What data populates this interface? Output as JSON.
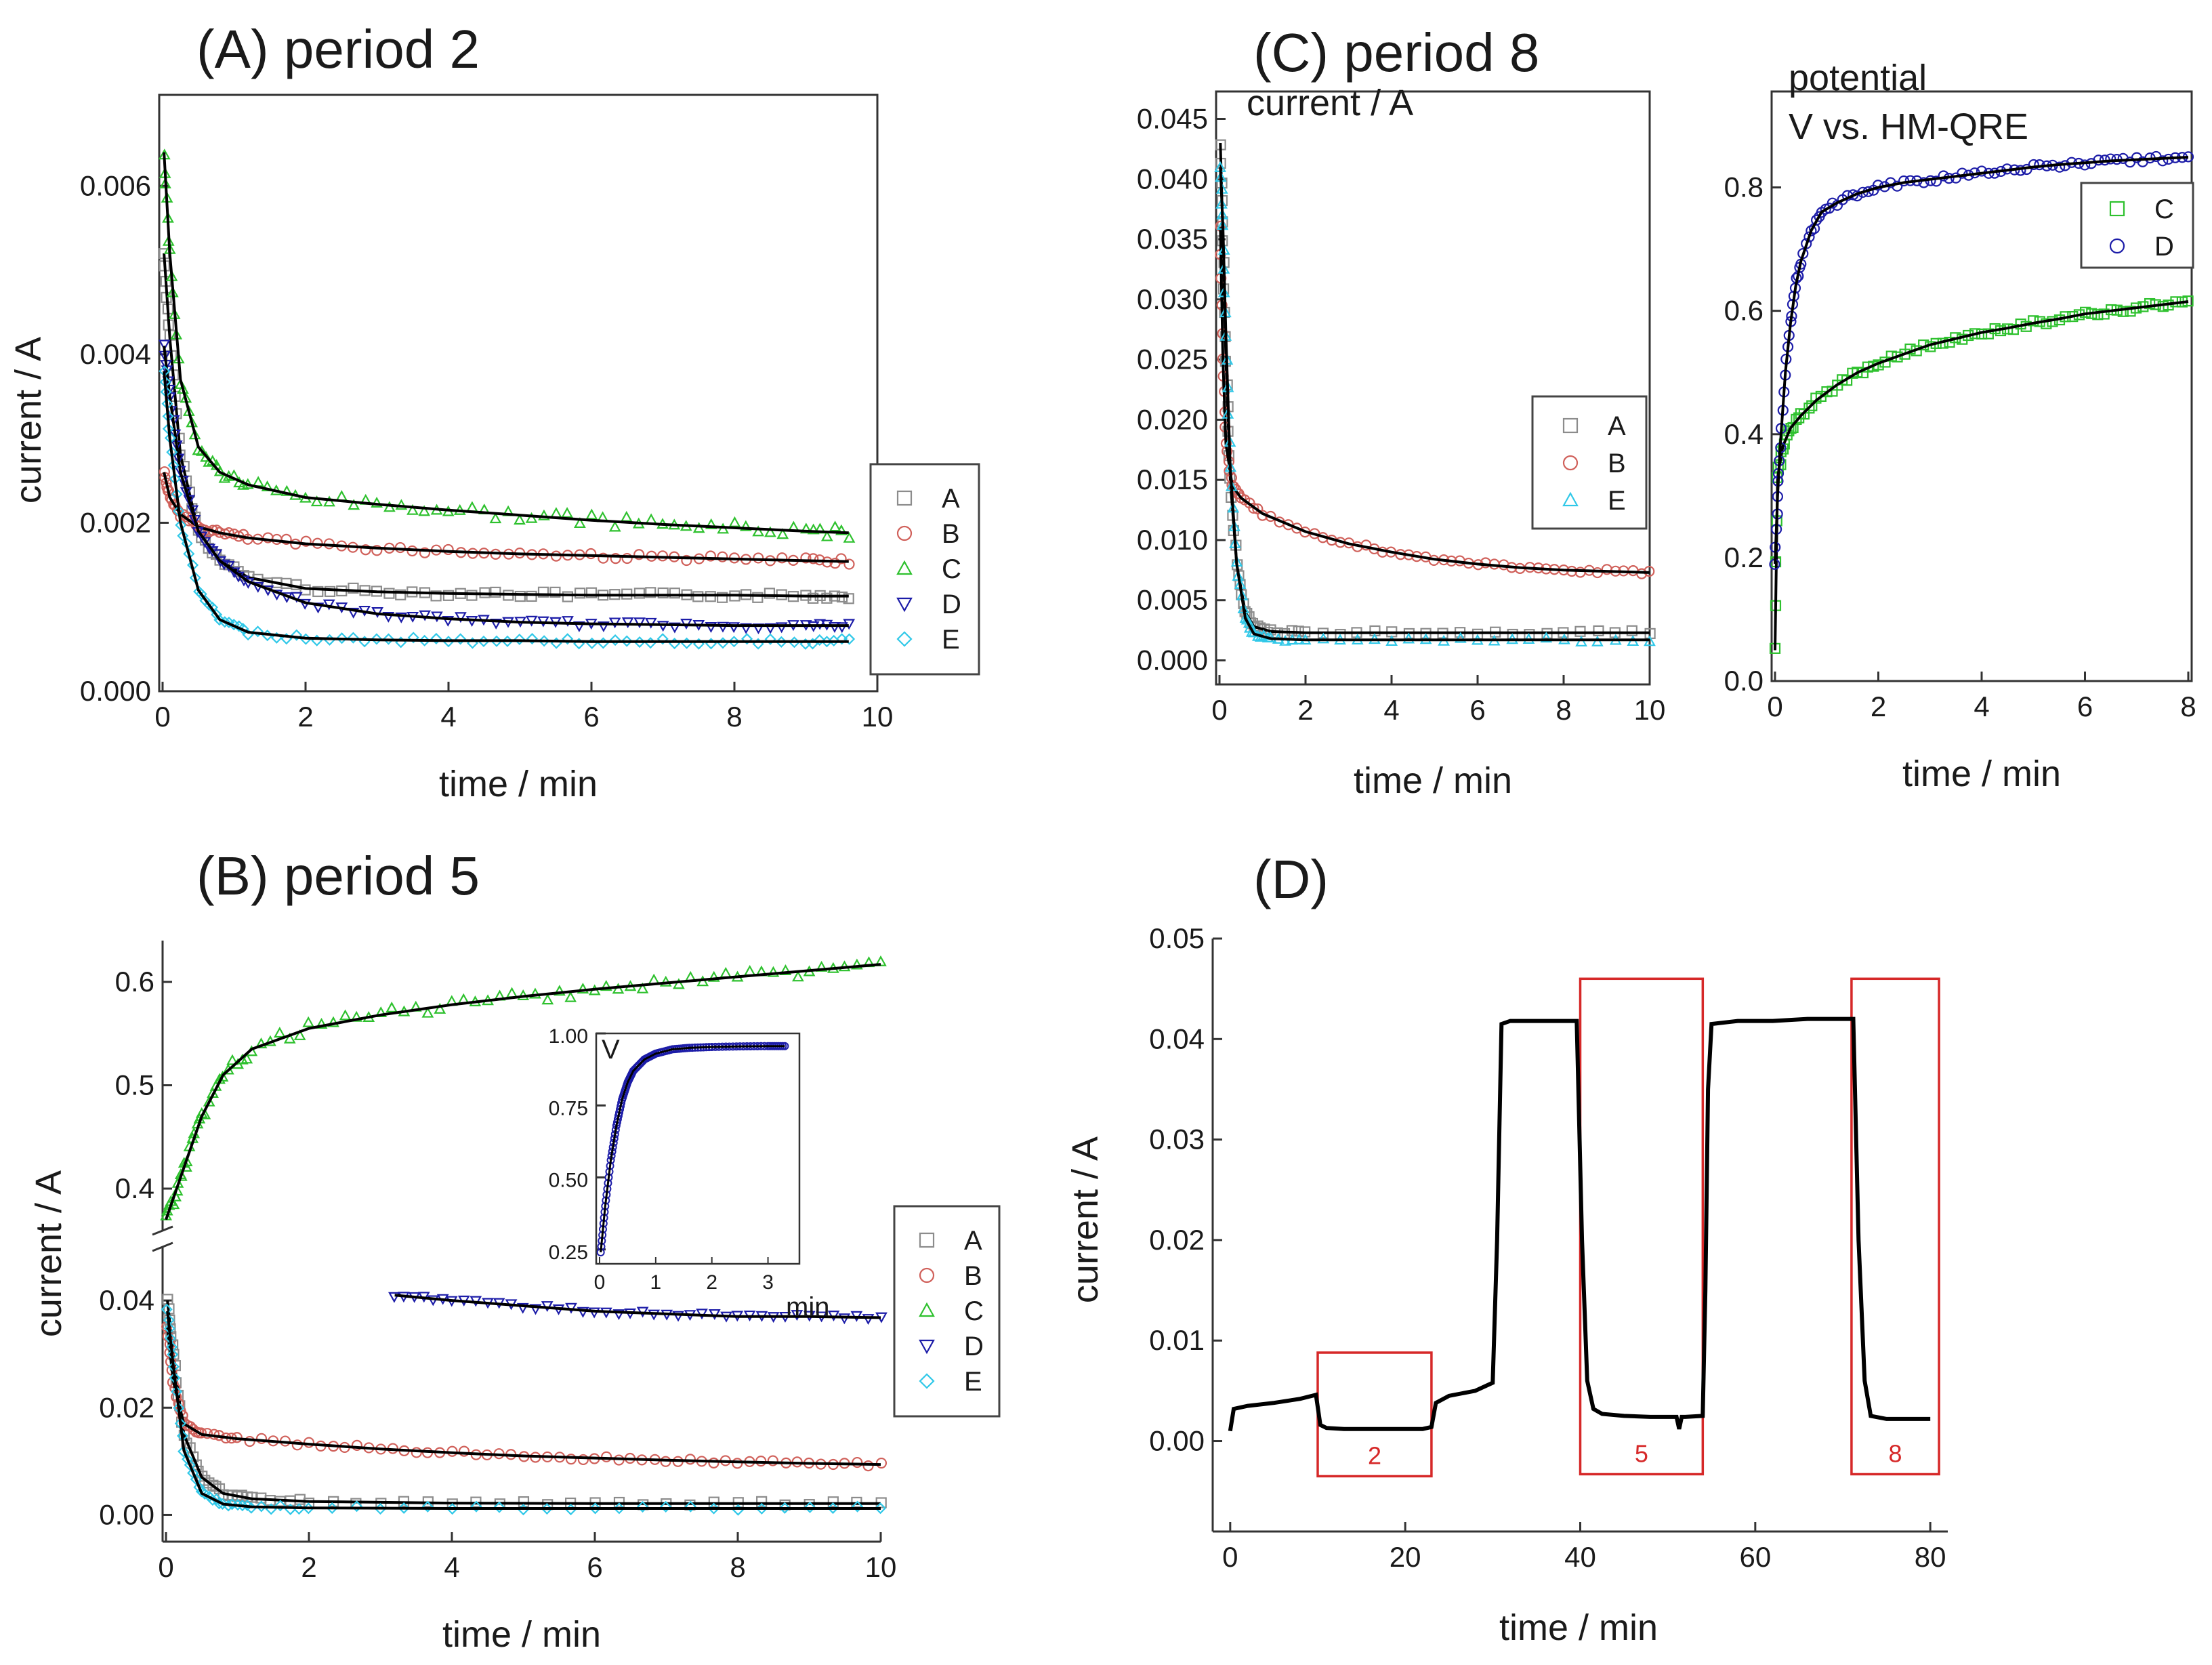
{
  "figure": {
    "colors": {
      "A": "#8c8c8c",
      "B": "#d0605a",
      "C": "#2ec12e",
      "D": "#1c1ca8",
      "E": "#30c8e8",
      "fit": "#000000",
      "box": "#d62828"
    }
  },
  "chart_data": [
    {
      "id": "panelA",
      "type": "scatter",
      "title": "(A) period 2",
      "xlabel": "time / min",
      "ylabel": "current / A",
      "xlim": [
        0,
        10
      ],
      "ylim": [
        0,
        0.007
      ],
      "xticks": [
        "0",
        "2",
        "4",
        "6",
        "8",
        "10"
      ],
      "yticks": [
        "0.000",
        "0.002",
        "0.004",
        "0.006"
      ],
      "legend": [
        "A",
        "B",
        "C",
        "D",
        "E"
      ],
      "legend_position": "right",
      "series": [
        {
          "name": "A",
          "marker": "square",
          "x": [
            0.02,
            0.1,
            0.25,
            0.5,
            0.8,
            1.2,
            2,
            3,
            4,
            5,
            6,
            7,
            8,
            9,
            9.6
          ],
          "y": [
            0.0052,
            0.0042,
            0.0028,
            0.0019,
            0.00155,
            0.00135,
            0.00122,
            0.00118,
            0.00116,
            0.00115,
            0.00114,
            0.00114,
            0.00114,
            0.00113,
            0.00113
          ]
        },
        {
          "name": "B",
          "marker": "circle",
          "x": [
            0.02,
            0.1,
            0.25,
            0.5,
            0.8,
            1.2,
            2,
            3,
            4,
            5,
            6,
            7,
            8,
            9,
            9.6
          ],
          "y": [
            0.0026,
            0.0023,
            0.0021,
            0.00195,
            0.00188,
            0.00182,
            0.00175,
            0.0017,
            0.00166,
            0.00163,
            0.00161,
            0.00159,
            0.00157,
            0.00155,
            0.00154
          ]
        },
        {
          "name": "C",
          "marker": "triangle-up",
          "x": [
            0.02,
            0.1,
            0.25,
            0.5,
            0.8,
            1.2,
            2,
            3,
            4,
            5,
            6,
            7,
            8,
            9,
            9.6
          ],
          "y": [
            0.0064,
            0.0052,
            0.0037,
            0.0029,
            0.0026,
            0.00245,
            0.0023,
            0.00222,
            0.00215,
            0.00209,
            0.00203,
            0.00198,
            0.00194,
            0.0019,
            0.00188
          ]
        },
        {
          "name": "D",
          "marker": "triangle-down",
          "x": [
            0.02,
            0.1,
            0.25,
            0.5,
            0.8,
            1.2,
            2,
            3,
            4,
            5,
            6,
            7,
            8,
            9,
            9.6
          ],
          "y": [
            0.0041,
            0.0035,
            0.0026,
            0.0019,
            0.00155,
            0.0013,
            0.00105,
            0.00092,
            0.00086,
            0.00082,
            0.0008,
            0.00079,
            0.00078,
            0.00078,
            0.00078
          ]
        },
        {
          "name": "E",
          "marker": "diamond",
          "x": [
            0.02,
            0.1,
            0.25,
            0.5,
            0.8,
            1.2,
            2,
            3,
            4,
            5,
            6,
            7,
            8,
            9,
            9.6
          ],
          "y": [
            0.0038,
            0.003,
            0.002,
            0.0012,
            0.00085,
            0.0007,
            0.00063,
            0.00061,
            0.0006,
            0.0006,
            0.00059,
            0.00059,
            0.00059,
            0.00059,
            0.00059
          ]
        }
      ]
    },
    {
      "id": "panelB",
      "type": "scatter",
      "title": "(B) period 5",
      "xlabel": "time / min",
      "ylabel": "current / A",
      "xlim": [
        0,
        10
      ],
      "axis_break": true,
      "lower_ylim": [
        -0.005,
        0.05
      ],
      "upper_ylim": [
        0.36,
        0.64
      ],
      "xticks": [
        "0",
        "2",
        "4",
        "6",
        "8",
        "10"
      ],
      "lower_yticks": [
        "0.00",
        "0.02",
        "0.04"
      ],
      "upper_yticks": [
        "0.4",
        "0.5",
        "0.6"
      ],
      "legend": [
        "A",
        "B",
        "C",
        "D",
        "E"
      ],
      "legend_position": "right",
      "series": [
        {
          "name": "A",
          "marker": "square",
          "segment": "lower",
          "x": [
            0.02,
            0.1,
            0.25,
            0.5,
            0.8,
            1.2,
            2,
            4,
            6,
            8,
            10
          ],
          "y": [
            0.04,
            0.03,
            0.015,
            0.007,
            0.004,
            0.003,
            0.0025,
            0.0022,
            0.0021,
            0.0021,
            0.0021
          ]
        },
        {
          "name": "B",
          "marker": "circle",
          "segment": "lower",
          "x": [
            0.02,
            0.1,
            0.25,
            0.5,
            1,
            2,
            3,
            4,
            5,
            6,
            7,
            8,
            9,
            10
          ],
          "y": [
            0.035,
            0.025,
            0.017,
            0.015,
            0.0142,
            0.0132,
            0.0123,
            0.0116,
            0.011,
            0.0106,
            0.0102,
            0.0099,
            0.0096,
            0.0094
          ]
        },
        {
          "name": "C",
          "marker": "triangle-up",
          "segment": "upper",
          "x": [
            0,
            0.15,
            0.3,
            0.5,
            0.8,
            1.2,
            2,
            3,
            4,
            5,
            6,
            7,
            8,
            9,
            10
          ],
          "y": [
            0.37,
            0.4,
            0.43,
            0.47,
            0.51,
            0.535,
            0.555,
            0.568,
            0.578,
            0.586,
            0.593,
            0.599,
            0.605,
            0.611,
            0.617
          ]
        },
        {
          "name": "D",
          "marker": "triangle-down",
          "segment": "lower",
          "x": [
            3.2,
            4,
            5,
            6,
            7,
            8,
            9,
            10
          ],
          "y": [
            0.041,
            0.04,
            0.039,
            0.038,
            0.0375,
            0.037,
            0.037,
            0.0368
          ]
        },
        {
          "name": "E",
          "marker": "diamond",
          "segment": "lower",
          "x": [
            0.02,
            0.1,
            0.25,
            0.5,
            0.8,
            1.2,
            2,
            4,
            6,
            8,
            10
          ],
          "y": [
            0.038,
            0.028,
            0.012,
            0.004,
            0.002,
            0.0015,
            0.0013,
            0.0012,
            0.0012,
            0.0012,
            0.0012
          ]
        }
      ],
      "inset": {
        "label": "V",
        "xlabel": "min",
        "xlim": [
          0,
          3.5
        ],
        "ylim": [
          0.2,
          1.0
        ],
        "xticks": [
          "0",
          "1",
          "2",
          "3"
        ],
        "yticks": [
          "0.25",
          "0.50",
          "0.75",
          "1.00"
        ],
        "series": [
          {
            "name": "D",
            "x": [
              0.02,
              0.1,
              0.2,
              0.3,
              0.4,
              0.5,
              0.6,
              0.8,
              1.0,
              1.3,
              1.6,
              2,
              2.5,
              3,
              3.3
            ],
            "y": [
              0.24,
              0.4,
              0.56,
              0.68,
              0.77,
              0.83,
              0.87,
              0.91,
              0.93,
              0.945,
              0.95,
              0.953,
              0.955,
              0.956,
              0.956
            ]
          }
        ]
      }
    },
    {
      "id": "panelC1",
      "type": "scatter",
      "title": "(C) period 8",
      "ylabel": "current / A",
      "xlabel": "time / min",
      "xlim": [
        0,
        10
      ],
      "ylim": [
        -0.002,
        0.047
      ],
      "xticks": [
        "0",
        "2",
        "4",
        "6",
        "8",
        "10"
      ],
      "yticks": [
        "0.000",
        "0.005",
        "0.010",
        "0.015",
        "0.020",
        "0.025",
        "0.030",
        "0.035",
        "0.040",
        "0.045"
      ],
      "legend": [
        "A",
        "B",
        "E"
      ],
      "legend_position": "right",
      "series": [
        {
          "name": "A",
          "marker": "square",
          "x": [
            0.02,
            0.08,
            0.15,
            0.25,
            0.4,
            0.6,
            0.8,
            1.2,
            2,
            4,
            6,
            8,
            10
          ],
          "y": [
            0.043,
            0.035,
            0.025,
            0.015,
            0.008,
            0.004,
            0.0028,
            0.0024,
            0.0023,
            0.0023,
            0.0023,
            0.0023,
            0.0023
          ]
        },
        {
          "name": "B",
          "marker": "circle",
          "x": [
            0.02,
            0.08,
            0.15,
            0.3,
            0.5,
            1,
            2,
            3,
            4,
            5,
            6,
            7,
            8,
            9,
            10
          ],
          "y": [
            0.036,
            0.025,
            0.018,
            0.0145,
            0.0135,
            0.0122,
            0.0107,
            0.0097,
            0.009,
            0.0084,
            0.008,
            0.0077,
            0.0075,
            0.0074,
            0.0073
          ]
        },
        {
          "name": "E",
          "marker": "triangle-up",
          "x": [
            0.02,
            0.08,
            0.15,
            0.25,
            0.4,
            0.6,
            0.8,
            1.2,
            2,
            4,
            6,
            8,
            10
          ],
          "y": [
            0.041,
            0.036,
            0.027,
            0.016,
            0.008,
            0.0035,
            0.0022,
            0.0018,
            0.0017,
            0.0017,
            0.0017,
            0.0017,
            0.0017
          ]
        }
      ]
    },
    {
      "id": "panelC2",
      "type": "scatter",
      "ylabel_line1": "potential",
      "ylabel_line2": "V vs. HM-QRE",
      "xlabel": "time / min",
      "xlim": [
        0,
        8
      ],
      "ylim": [
        0,
        0.95
      ],
      "xticks": [
        "0",
        "2",
        "4",
        "6",
        "8"
      ],
      "yticks": [
        "0.0",
        "0.2",
        "0.4",
        "0.6",
        "0.8"
      ],
      "legend": [
        "C",
        "D"
      ],
      "legend_position": "top-right",
      "series": [
        {
          "name": "C",
          "marker": "square",
          "x": [
            0,
            0.05,
            0.15,
            0.3,
            0.5,
            0.8,
            1.2,
            1.6,
            2,
            2.5,
            3,
            3.5,
            4,
            4.5,
            5,
            5.5,
            6,
            6.5,
            7,
            7.5,
            8
          ],
          "y": [
            0.05,
            0.33,
            0.38,
            0.41,
            0.43,
            0.455,
            0.48,
            0.5,
            0.515,
            0.53,
            0.545,
            0.555,
            0.565,
            0.572,
            0.58,
            0.587,
            0.595,
            0.6,
            0.605,
            0.61,
            0.615
          ]
        },
        {
          "name": "D",
          "marker": "circle",
          "x": [
            0,
            0.05,
            0.1,
            0.2,
            0.3,
            0.4,
            0.5,
            0.7,
            0.9,
            1.2,
            1.6,
            2,
            2.5,
            3,
            3.5,
            4,
            4.5,
            5,
            5.5,
            6,
            6.5,
            7,
            7.5,
            8
          ],
          "y": [
            0.19,
            0.3,
            0.38,
            0.5,
            0.58,
            0.64,
            0.68,
            0.73,
            0.76,
            0.775,
            0.79,
            0.8,
            0.808,
            0.813,
            0.818,
            0.823,
            0.828,
            0.833,
            0.837,
            0.84,
            0.843,
            0.845,
            0.847,
            0.849
          ]
        }
      ]
    },
    {
      "id": "panelD",
      "type": "line",
      "title": "(D)",
      "xlabel": "time / min",
      "ylabel": "current / A",
      "xlim": [
        -2,
        82
      ],
      "ylim": [
        -0.009,
        0.05
      ],
      "xticks": [
        "0",
        "20",
        "40",
        "60",
        "80"
      ],
      "yticks": [
        "0.00",
        "0.01",
        "0.02",
        "0.03",
        "0.04",
        "0.05"
      ],
      "series": [
        {
          "name": "current",
          "x": [
            0,
            0.4,
            2,
            5,
            8,
            9.8,
            10.3,
            11,
            13,
            16,
            19,
            22,
            23,
            23.5,
            25,
            28,
            30,
            30.5,
            31,
            32,
            35,
            38,
            39.6,
            40.2,
            40.8,
            41.5,
            42.5,
            45,
            48,
            50,
            51,
            51.3,
            51.6,
            52,
            54,
            54.3,
            54.6,
            55,
            58,
            62,
            66,
            70,
            71.2,
            71.8,
            72.5,
            73.2,
            75,
            78,
            80
          ],
          "y": [
            0.001,
            0.0032,
            0.0035,
            0.0038,
            0.0042,
            0.0046,
            0.0016,
            0.0013,
            0.0012,
            0.0012,
            0.0012,
            0.0012,
            0.0014,
            0.0038,
            0.0045,
            0.005,
            0.0058,
            0.02,
            0.0415,
            0.0418,
            0.0418,
            0.0418,
            0.0418,
            0.02,
            0.006,
            0.0032,
            0.0027,
            0.0025,
            0.0024,
            0.0024,
            0.0024,
            0.0012,
            0.0024,
            0.0024,
            0.0025,
            0.015,
            0.035,
            0.0415,
            0.0418,
            0.0418,
            0.042,
            0.042,
            0.042,
            0.02,
            0.006,
            0.0025,
            0.0022,
            0.0022,
            0.0022
          ]
        }
      ],
      "annotations": [
        {
          "label": "2",
          "x0": 10,
          "x1": 23,
          "y0": -0.0035,
          "y1": 0.0088
        },
        {
          "label": "5",
          "x0": 40,
          "x1": 54,
          "y0": -0.0033,
          "y1": 0.046
        },
        {
          "label": "8",
          "x0": 71,
          "x1": 81,
          "y0": -0.0033,
          "y1": 0.046
        }
      ]
    }
  ]
}
